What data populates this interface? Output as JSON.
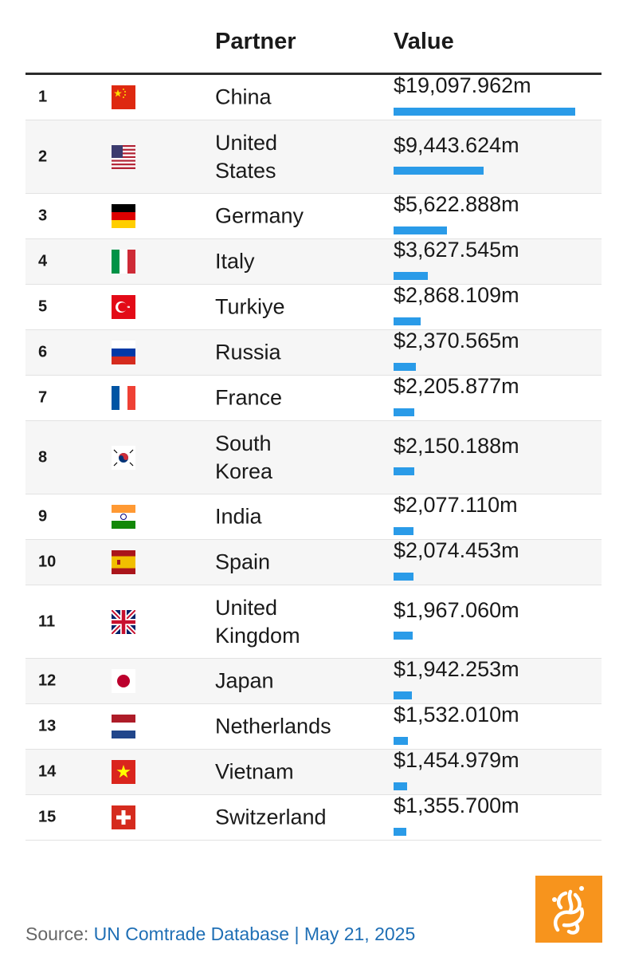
{
  "header": {
    "partner": "Partner",
    "value": "Value"
  },
  "chart_data": {
    "type": "bar",
    "xlabel": "",
    "ylabel": "",
    "columns": [
      "Partner",
      "Value"
    ],
    "ranks": [
      "1",
      "2",
      "3",
      "4",
      "5",
      "6",
      "7",
      "8",
      "9",
      "10",
      "11",
      "12",
      "13",
      "14",
      "15"
    ],
    "categories": [
      "China",
      "United States",
      "Germany",
      "Italy",
      "Turkiye",
      "Russia",
      "France",
      "South Korea",
      "India",
      "Spain",
      "United Kingdom",
      "Japan",
      "Netherlands",
      "Vietnam",
      "Switzerland"
    ],
    "values": [
      19097.962,
      9443.624,
      5622.888,
      3627.545,
      2868.109,
      2370.565,
      2205.877,
      2150.188,
      2077.11,
      2074.453,
      1967.06,
      1942.253,
      1532.01,
      1454.979,
      1355.7
    ],
    "value_labels": [
      "$19,097.962m",
      "$9,443.624m",
      "$5,622.888m",
      "$3,627.545m",
      "$2,868.109m",
      "$2,370.565m",
      "$2,205.877m",
      "$2,150.188m",
      "$2,077.110m",
      "$2,074.453m",
      "$1,967.060m",
      "$1,942.253m",
      "$1,532.010m",
      "$1,454.979m",
      "$1,355.700m"
    ],
    "flags": [
      "china-flag",
      "usa-flag",
      "germany-flag",
      "italy-flag",
      "turkiye-flag",
      "russia-flag",
      "france-flag",
      "south-korea-flag",
      "india-flag",
      "spain-flag",
      "uk-flag",
      "japan-flag",
      "netherlands-flag",
      "vietnam-flag",
      "switzerland-flag"
    ],
    "bar_color": "#2a9be8"
  },
  "footer": {
    "prefix": "Source: ",
    "source_name": "UN Comtrade Database",
    "separator": " | ",
    "date": "May 21, 2025"
  },
  "logo": {
    "icon": "al-jazeera-logo",
    "color": "#f7941d"
  }
}
